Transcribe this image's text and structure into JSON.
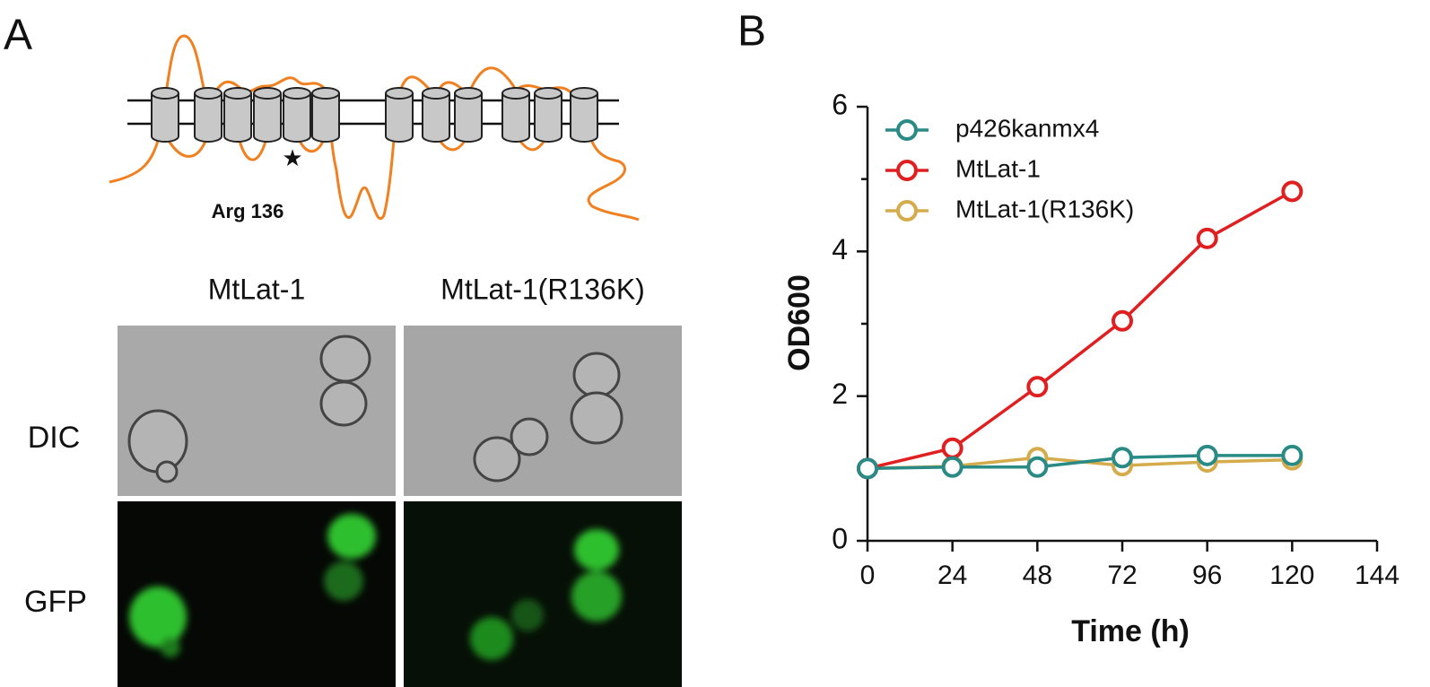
{
  "panel_a": {
    "label": "A",
    "site_label": "Arg 136",
    "columns": [
      "MtLat-1",
      "MtLat-1(R136K)"
    ],
    "rows": [
      "DIC",
      "GFP"
    ]
  },
  "chart_data": {
    "type": "line",
    "panel_label": "B",
    "x_label": "Time (h)",
    "y_label": "OD600",
    "x": [
      0,
      24,
      48,
      72,
      96,
      120
    ],
    "series": [
      {
        "name": "p426kanmx4",
        "color": "#2a8a86",
        "values": [
          1.0,
          1.02,
          1.02,
          1.15,
          1.18,
          1.18
        ]
      },
      {
        "name": "MtLat-1",
        "color": "#e02020",
        "values": [
          1.0,
          1.28,
          2.13,
          3.04,
          4.18,
          4.83
        ]
      },
      {
        "name": "MtLat-1(R136K)",
        "color": "#d4ac4c",
        "values": [
          1.0,
          1.03,
          1.15,
          1.04,
          1.09,
          1.12
        ]
      }
    ],
    "xlim": [
      0,
      144
    ],
    "ylim": [
      0,
      6
    ],
    "xticks": [
      0,
      24,
      48,
      72,
      96,
      120,
      144
    ],
    "yticks": [
      0,
      2,
      4,
      6
    ],
    "y_minor_ticks": [
      1,
      3,
      5
    ]
  }
}
